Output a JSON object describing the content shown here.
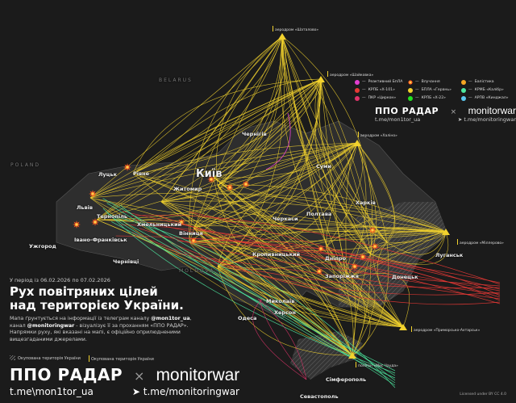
{
  "period": "У період із 06.02.2026 по 07.02.2026",
  "title_line1": "Рух повітряних цілей",
  "title_line2": "над територією України.",
  "description": {
    "p1": "Мапа ґрунтується на інформації із телеграм каналу ",
    "h1": "@mon1tor_ua",
    "p2": ", канал ",
    "h2": "@monitoringwar",
    "p3": " - візуалізує її за проханням «ППО РАДАР». Напрямки руху, які вказані на мапі, є офіційно оприлюдненими вищезгаданими джерелами."
  },
  "occupied_legend": "Окупована територія України",
  "occupied_legend_2": "Окупована територія України",
  "brand": {
    "ppo": "ППО РАДАР",
    "x": "×",
    "monitorwar": "monitorwar",
    "tg1": "t.me\\mon1tor_ua",
    "tg2": "t.me/monitoringwar",
    "tg1_small": "t.me/mon1tor_ua",
    "tg2_small": "t.me/monitoringwar"
  },
  "license": "Licensed under BY CC 4.0",
  "legend": [
    {
      "label": "Реактивний БпЛА",
      "color": "#e23fcf",
      "icon": "dot"
    },
    {
      "label": "Влучання",
      "color": "#ff5a1f",
      "icon": "explosion-icon"
    },
    {
      "label": "Балістика",
      "color": "#f5a623",
      "icon": "dot"
    },
    {
      "label": "КРПБ «Х-101»",
      "color": "#e53935",
      "icon": "dot"
    },
    {
      "label": "БПЛА «Герань»",
      "color": "#f2d22e",
      "icon": "dot"
    },
    {
      "label": "КРМБ «Калібр»",
      "color": "#4de8a0",
      "icon": "dot"
    },
    {
      "label": "ПКР «Циркон»",
      "color": "#e0336a",
      "icon": "dot"
    },
    {
      "label": "КРПБ «Х-22»",
      "color": "#22e022",
      "icon": "dot"
    },
    {
      "label": "АРПВ «Кинджал»",
      "color": "#5bc8f0",
      "icon": "dot"
    }
  ],
  "countries": [
    "BELARUS",
    "POLAND",
    "MOLDOVA"
  ],
  "cities": [
    "Київ",
    "Луцьк",
    "Рівне",
    "Житомир",
    "Львів",
    "Тернопіль",
    "Хмельницький",
    "Вінниця",
    "Івано-Франківськ",
    "Ужгород",
    "Чернівці",
    "Чернігів",
    "Суми",
    "Харків",
    "Полтава",
    "Черкаси",
    "Кропивницький",
    "Дніпро",
    "Запоріжжя",
    "Донецьк",
    "Луганськ",
    "Миколаїв",
    "Херсон",
    "Одеса",
    "Сімферополь",
    "Севастополь"
  ],
  "airfields": [
    "аеродром «Шаталово»",
    "аеродром «Шайковка»",
    "аеродром «Халіно»",
    "аеродром «Міллерово»",
    "аеродром «Приморсько-Ахтарськ»",
    "полігон «Мис Чауда»"
  ],
  "colors": {
    "shahed": "#f2d22e",
    "kh101": "#e53935",
    "kalibr": "#4de8a0",
    "zircon": "#e0336a",
    "kh22": "#22e022",
    "jet_drone": "#e23fcf"
  }
}
